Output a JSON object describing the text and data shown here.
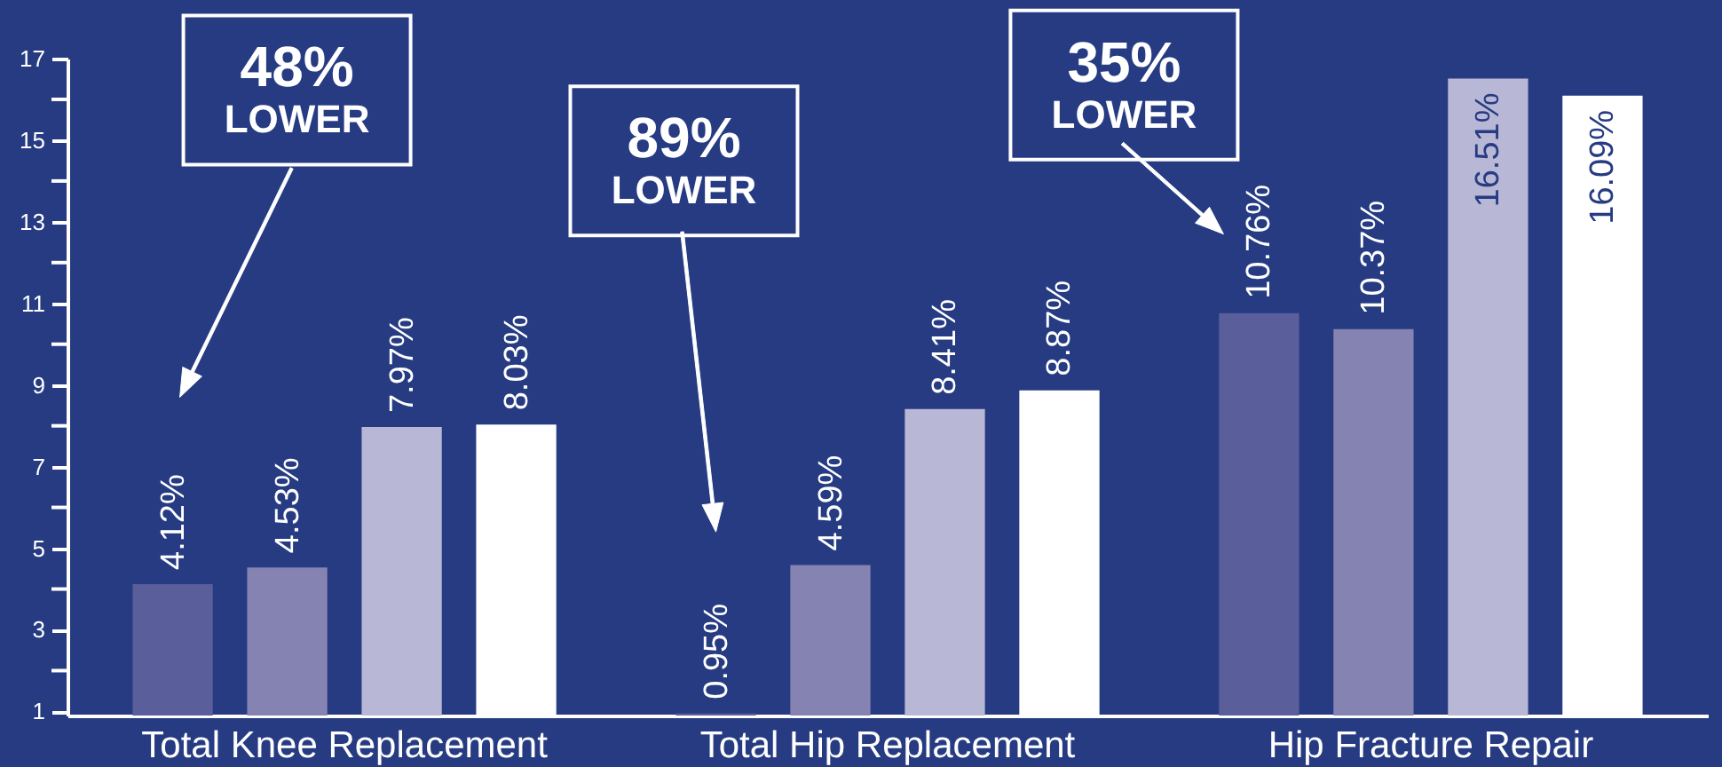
{
  "chart_data": {
    "type": "bar",
    "categories": [
      "Total Knee Replacement",
      "Total Hip Replacement",
      "Hip Fracture Repair"
    ],
    "series": [
      {
        "color": "#5a5e9a",
        "values": [
          4.12,
          0.95,
          10.76
        ],
        "value_labels": [
          "4.12%",
          "0.95%",
          "10.76%"
        ]
      },
      {
        "color": "#8583b2",
        "values": [
          4.53,
          4.59,
          10.37
        ],
        "value_labels": [
          "4.53%",
          "4.59%",
          "10.37%"
        ]
      },
      {
        "color": "#b8b8d6",
        "values": [
          7.97,
          8.41,
          16.51
        ],
        "value_labels": [
          "7.97%",
          "8.41%",
          "16.51%"
        ]
      },
      {
        "color": "#ffffff",
        "values": [
          8.03,
          8.87,
          16.09
        ],
        "value_labels": [
          "8.03%",
          "8.87%",
          "16.09%"
        ]
      }
    ],
    "ylim": [
      0.9,
      17
    ],
    "yticks": [
      1,
      {
        "value": 2,
        "label": null
      },
      3,
      {
        "value": 4,
        "label": null
      },
      5,
      {
        "value": 6,
        "label": null
      },
      7,
      {
        "value": 8,
        "label": null
      },
      9,
      {
        "value": 10,
        "label": null
      },
      11,
      {
        "value": 12,
        "label": null
      },
      13,
      {
        "value": 14,
        "label": null
      },
      15,
      {
        "value": 16,
        "label": null
      },
      17
    ],
    "grid": false,
    "annotations": [
      "48%\nLOWER",
      "89%\nLOWER",
      "35%\nLOWER"
    ]
  }
}
